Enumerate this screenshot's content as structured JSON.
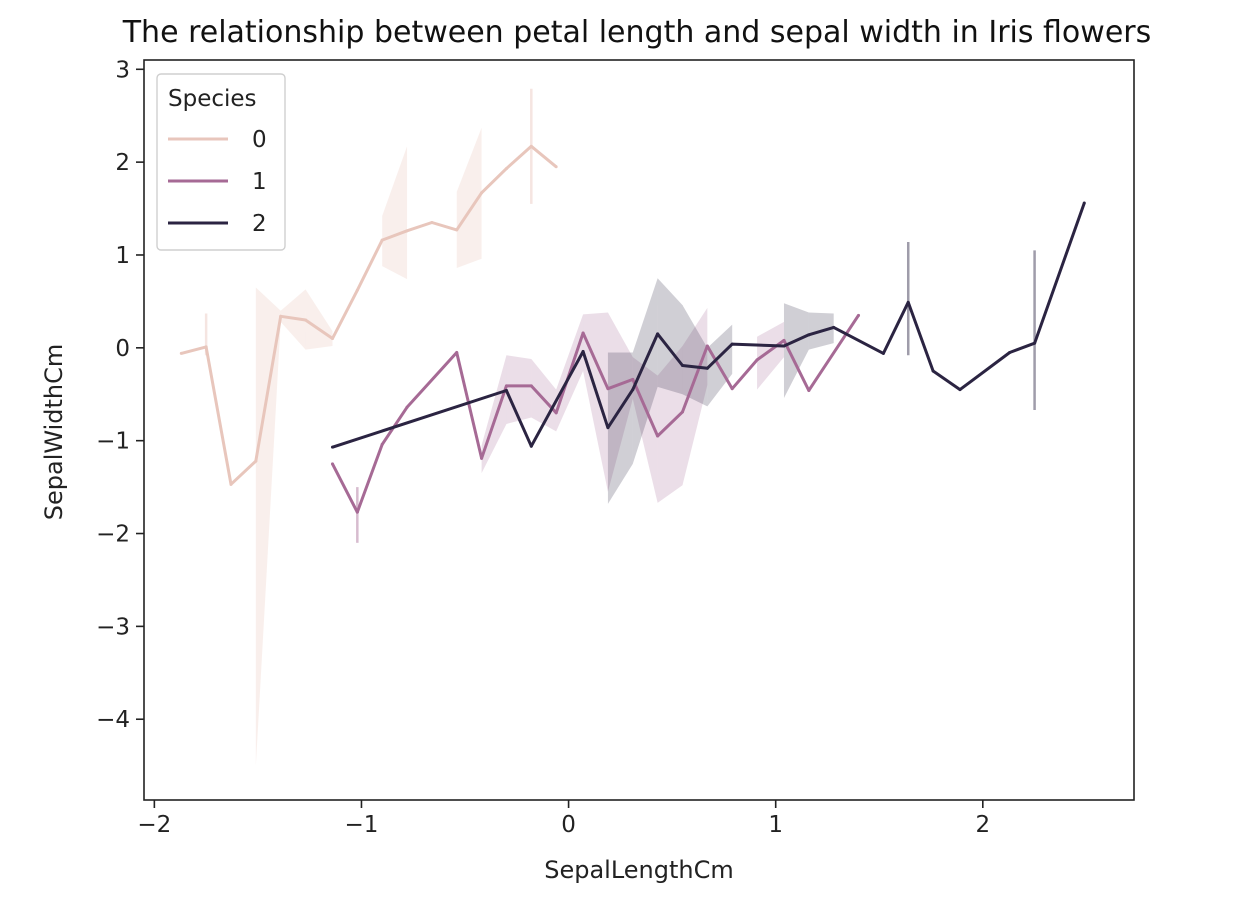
{
  "chart_data": {
    "type": "line",
    "title": "The relationship between petal length and sepal width in Iris flowers",
    "xlabel": "SepalLengthCm",
    "ylabel": "SepalWidthCm",
    "xlim": [
      -2.05,
      2.73
    ],
    "ylim": [
      -4.87,
      3.1
    ],
    "xticks": [
      -2,
      -1,
      0,
      1,
      2
    ],
    "yticks": [
      -4,
      -3,
      -2,
      -1,
      0,
      1,
      2,
      3
    ],
    "legend": {
      "title": "Species",
      "placement": "top-left"
    },
    "series": [
      {
        "name": "0",
        "color": "#e8c6bc",
        "points": [
          [
            -1.87,
            -0.06
          ],
          [
            -1.75,
            0.01
          ],
          [
            -1.63,
            -1.47
          ],
          [
            -1.51,
            -1.22
          ],
          [
            -1.39,
            0.34
          ],
          [
            -1.27,
            0.3
          ],
          [
            -1.14,
            0.1
          ],
          [
            -1.02,
            0.62
          ],
          [
            -0.9,
            1.16
          ],
          [
            -0.78,
            1.26
          ],
          [
            -0.66,
            1.35
          ],
          [
            -0.54,
            1.27
          ],
          [
            -0.42,
            1.67
          ],
          [
            -0.3,
            1.93
          ],
          [
            -0.18,
            2.17
          ],
          [
            -0.06,
            1.95
          ]
        ],
        "band": [
          [
            -1.75,
            -0.08,
            0.37
          ],
          [
            -1.51,
            -4.5,
            0.65
          ],
          [
            -1.39,
            0.28,
            0.4
          ],
          [
            -1.27,
            -0.02,
            0.63
          ],
          [
            -1.14,
            0.02,
            0.18
          ],
          [
            -0.9,
            0.88,
            1.42
          ],
          [
            -0.78,
            0.74,
            2.17
          ],
          [
            -0.54,
            0.86,
            1.68
          ],
          [
            -0.42,
            0.96,
            2.37
          ],
          [
            -0.18,
            1.55,
            2.79
          ]
        ]
      },
      {
        "name": "1",
        "color": "#a66a95",
        "points": [
          [
            -1.14,
            -1.25
          ],
          [
            -1.02,
            -1.77
          ],
          [
            -0.9,
            -1.04
          ],
          [
            -0.78,
            -0.64
          ],
          [
            -0.54,
            -0.05
          ],
          [
            -0.42,
            -1.19
          ],
          [
            -0.3,
            -0.41
          ],
          [
            -0.18,
            -0.41
          ],
          [
            -0.06,
            -0.7
          ],
          [
            0.07,
            0.16
          ],
          [
            0.19,
            -0.44
          ],
          [
            0.31,
            -0.34
          ],
          [
            0.43,
            -0.95
          ],
          [
            0.55,
            -0.69
          ],
          [
            0.67,
            0.02
          ],
          [
            0.79,
            -0.44
          ],
          [
            0.91,
            -0.13
          ],
          [
            1.04,
            0.08
          ],
          [
            1.16,
            -0.46
          ],
          [
            1.4,
            0.35
          ]
        ],
        "band": [
          [
            -1.02,
            -2.1,
            -1.5
          ],
          [
            -0.42,
            -1.35,
            -1.05
          ],
          [
            -0.3,
            -0.82,
            -0.08
          ],
          [
            -0.18,
            -0.75,
            -0.12
          ],
          [
            -0.06,
            -0.9,
            -0.45
          ],
          [
            0.07,
            -0.25,
            0.36
          ],
          [
            0.19,
            -1.55,
            0.38
          ],
          [
            0.31,
            -0.55,
            -0.1
          ],
          [
            0.43,
            -1.67,
            -0.3
          ],
          [
            0.55,
            -1.48,
            0.02
          ],
          [
            0.67,
            -0.4,
            0.43
          ],
          [
            0.91,
            -0.45,
            0.12
          ],
          [
            1.04,
            -0.1,
            0.28
          ]
        ]
      },
      {
        "name": "2",
        "color": "#2b2442",
        "points": [
          [
            -1.14,
            -1.07
          ],
          [
            -0.3,
            -0.46
          ],
          [
            -0.18,
            -1.06
          ],
          [
            0.07,
            -0.04
          ],
          [
            0.19,
            -0.86
          ],
          [
            0.31,
            -0.45
          ],
          [
            0.43,
            0.15
          ],
          [
            0.55,
            -0.19
          ],
          [
            0.67,
            -0.22
          ],
          [
            0.79,
            0.04
          ],
          [
            1.04,
            0.02
          ],
          [
            1.16,
            0.14
          ],
          [
            1.28,
            0.22
          ],
          [
            1.52,
            -0.06
          ],
          [
            1.64,
            0.49
          ],
          [
            1.76,
            -0.25
          ],
          [
            1.89,
            -0.45
          ],
          [
            2.13,
            -0.05
          ],
          [
            2.25,
            0.05
          ],
          [
            2.49,
            1.56
          ]
        ],
        "band": [
          [
            0.19,
            -1.68,
            -0.05
          ],
          [
            0.31,
            -1.25,
            -0.05
          ],
          [
            0.43,
            -0.42,
            0.75
          ],
          [
            0.55,
            -0.5,
            0.46
          ],
          [
            0.67,
            -0.63,
            0.0
          ],
          [
            0.79,
            -0.28,
            0.25
          ],
          [
            1.04,
            -0.54,
            0.48
          ],
          [
            1.16,
            -0.02,
            0.38
          ],
          [
            1.28,
            0.05,
            0.37
          ],
          [
            1.64,
            -0.08,
            1.14
          ],
          [
            2.25,
            -0.67,
            1.05
          ]
        ]
      }
    ]
  }
}
